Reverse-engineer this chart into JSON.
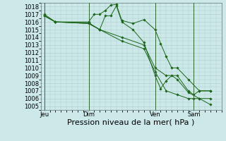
{
  "background_color": "#cce8e8",
  "grid_color": "#aacccc",
  "line_color": "#1a6618",
  "marker_color": "#1a6618",
  "ylim": [
    1005,
    1018
  ],
  "yticks": [
    1005,
    1006,
    1007,
    1008,
    1009,
    1010,
    1011,
    1012,
    1013,
    1014,
    1015,
    1016,
    1017,
    1018
  ],
  "xlabel": "Pression niveau de la mer( hPa )",
  "xlabel_fontsize": 8,
  "tick_fontsize": 6,
  "xtick_labels": [
    "Jeu",
    "Dim",
    "Ven",
    "Sam"
  ],
  "xtick_positions": [
    0,
    24,
    60,
    81
  ],
  "vline_positions": [
    0,
    24,
    60,
    81
  ],
  "xlim": [
    -2,
    96
  ],
  "series": [
    {
      "x": [
        0,
        6,
        24,
        27,
        30,
        33,
        36,
        39,
        42,
        48,
        54,
        60,
        63,
        66,
        69,
        72,
        78,
        84,
        90
      ],
      "y": [
        1017,
        1016,
        1016,
        1017,
        1017,
        1017.5,
        1018.2,
        1018.3,
        1016.2,
        1015.8,
        1016.3,
        1015,
        1013.2,
        1011.5,
        1010,
        1010,
        1008.5,
        1007,
        1007
      ]
    },
    {
      "x": [
        0,
        6,
        24,
        30,
        33,
        36,
        39,
        42,
        48,
        54,
        60,
        63,
        66,
        69,
        72,
        78,
        84,
        90
      ],
      "y": [
        1016.8,
        1016,
        1015.9,
        1015,
        1016.8,
        1016.8,
        1018.1,
        1016,
        1015,
        1013.3,
        1009,
        1007.3,
        1008.3,
        1009,
        1008.5,
        1006.8,
        1006,
        1005.2
      ]
    },
    {
      "x": [
        0,
        6,
        24,
        30,
        42,
        54,
        60,
        66,
        72,
        78,
        81,
        84,
        90
      ],
      "y": [
        1016.8,
        1016,
        1015.8,
        1015,
        1014,
        1013,
        1010,
        1009,
        1009,
        1007,
        1006.5,
        1007,
        1007
      ]
    },
    {
      "x": [
        0,
        6,
        24,
        30,
        42,
        54,
        60,
        66,
        72,
        78,
        81,
        84,
        90
      ],
      "y": [
        1016.8,
        1016,
        1015.8,
        1015,
        1013.5,
        1012.5,
        1009.5,
        1007,
        1006.5,
        1006,
        1006,
        1006,
        1006
      ]
    }
  ]
}
